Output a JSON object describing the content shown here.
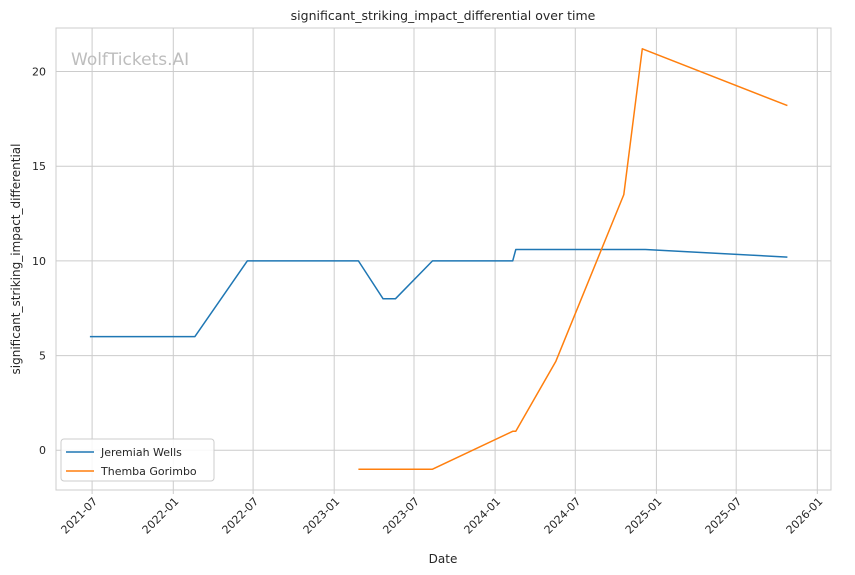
{
  "chart_data": {
    "type": "line",
    "title": "significant_striking_impact_differential over time",
    "xlabel": "Date",
    "ylabel": "significant_striking_impact_differential",
    "watermark": "WolfTickets.AI",
    "x_ticks": [
      "2021-07",
      "2022-01",
      "2022-07",
      "2023-01",
      "2023-07",
      "2024-01",
      "2024-07",
      "2025-01",
      "2025-07",
      "2026-01"
    ],
    "y_ticks": [
      0,
      5,
      10,
      15,
      20
    ],
    "xlim": [
      "2021-04-10",
      "2026-02-01"
    ],
    "ylim": [
      -2.1,
      22.3
    ],
    "grid": true,
    "legend_position": "lower-left",
    "series": [
      {
        "name": "Jeremiah Wells",
        "color": "#1f77b4",
        "points": [
          [
            "2021-06-26",
            6.0
          ],
          [
            "2022-02-19",
            6.0
          ],
          [
            "2022-06-18",
            10.0
          ],
          [
            "2023-02-25",
            10.0
          ],
          [
            "2023-04-22",
            8.0
          ],
          [
            "2023-05-20",
            8.0
          ],
          [
            "2023-08-12",
            10.0
          ],
          [
            "2024-02-10",
            10.0
          ],
          [
            "2024-02-17",
            10.6
          ],
          [
            "2024-12-07",
            10.6
          ],
          [
            "2025-10-25",
            10.2
          ]
        ]
      },
      {
        "name": "Themba Gorimbo",
        "color": "#ff7f0e",
        "points": [
          [
            "2023-02-25",
            -1.0
          ],
          [
            "2023-08-12",
            -1.0
          ],
          [
            "2024-02-10",
            1.0
          ],
          [
            "2024-02-17",
            1.0
          ],
          [
            "2024-05-18",
            4.7
          ],
          [
            "2024-10-19",
            13.5
          ],
          [
            "2024-11-30",
            21.2
          ],
          [
            "2025-10-25",
            18.2
          ]
        ]
      }
    ]
  }
}
